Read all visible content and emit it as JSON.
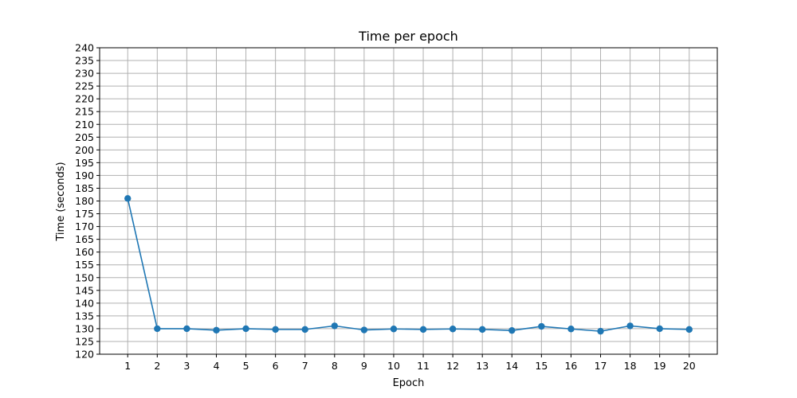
{
  "chart_data": {
    "type": "line",
    "title": "Time per epoch",
    "xlabel": "Epoch",
    "ylabel": "Time (seconds)",
    "x": [
      1,
      2,
      3,
      4,
      5,
      6,
      7,
      8,
      9,
      10,
      11,
      12,
      13,
      14,
      15,
      16,
      17,
      18,
      19,
      20
    ],
    "series": [
      {
        "values": [
          181.0,
          130.0,
          130.0,
          129.4,
          130.0,
          129.7,
          129.7,
          131.1,
          129.5,
          129.9,
          129.7,
          129.9,
          129.7,
          129.3,
          130.9,
          129.9,
          129.0,
          131.1,
          130.0,
          129.7
        ],
        "color": "#1f77b4",
        "marker": "circle"
      }
    ],
    "xticks": [
      "1",
      "2",
      "3",
      "4",
      "5",
      "6",
      "7",
      "8",
      "9",
      "10",
      "11",
      "12",
      "13",
      "14",
      "15",
      "16",
      "17",
      "18",
      "19",
      "20"
    ],
    "yticks": [
      "120",
      "125",
      "130",
      "135",
      "140",
      "145",
      "150",
      "155",
      "160",
      "165",
      "170",
      "175",
      "180",
      "185",
      "190",
      "195",
      "200",
      "205",
      "210",
      "215",
      "220",
      "225",
      "230",
      "235",
      "240"
    ],
    "xlim": [
      0.05,
      20.95
    ],
    "ylim": [
      120,
      240
    ],
    "grid": true,
    "legend": "none",
    "colors": {
      "line": "#1f77b4",
      "grid": "#b0b0b0",
      "axes": "#000000"
    }
  }
}
